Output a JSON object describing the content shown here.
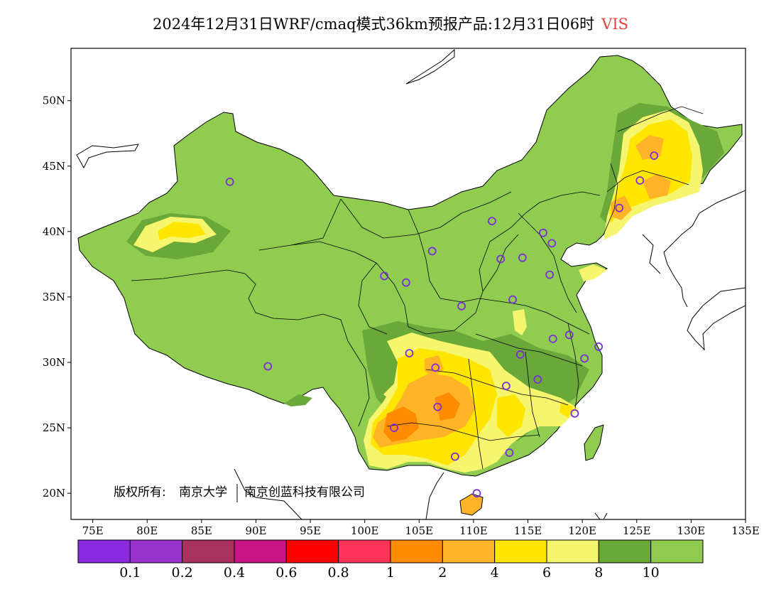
{
  "title": {
    "main": "2024年12月31日WRF/cmaq模式36km预报产品:12月31日06时",
    "variable": "VIS"
  },
  "copyright": {
    "prefix": "版权所有:",
    "owner1": "南京大学",
    "owner2": "南京创蓝科技有限公司"
  },
  "axes": {
    "lon_ticks": [
      "75E",
      "80E",
      "85E",
      "90E",
      "95E",
      "100E",
      "105E",
      "110E",
      "115E",
      "120E",
      "125E",
      "130E",
      "135E"
    ],
    "lat_ticks": [
      "50N",
      "45N",
      "40N",
      "35N",
      "30N",
      "25N",
      "20N"
    ]
  },
  "legend": {
    "colors": [
      "#8a2be2",
      "#9932cc",
      "#a8325e",
      "#c71585",
      "#ff0000",
      "#ff3358",
      "#ff8c00",
      "#ffb428",
      "#ffe600",
      "#f5f56e",
      "#6aa83a",
      "#8fcc50"
    ],
    "labels": [
      "0.1",
      "0.2",
      "0.4",
      "0.6",
      "0.8",
      "1",
      "2",
      "4",
      "6",
      "8",
      "10"
    ]
  },
  "palette": {
    "land_base": "#8fcc50",
    "land_dark": "#6aa83a",
    "light_yellow": "#f5f56e",
    "yellow": "#ffe600",
    "orange_light": "#ffb428",
    "orange": "#ff8c00",
    "station_marker": "#7b2fd6"
  },
  "stations": [
    {
      "lon": 87.6,
      "lat": 43.8
    },
    {
      "lon": 91.1,
      "lat": 29.7
    },
    {
      "lon": 101.8,
      "lat": 36.6
    },
    {
      "lon": 103.8,
      "lat": 36.1
    },
    {
      "lon": 106.2,
      "lat": 38.5
    },
    {
      "lon": 111.7,
      "lat": 40.8
    },
    {
      "lon": 112.5,
      "lat": 37.9
    },
    {
      "lon": 114.5,
      "lat": 38.0
    },
    {
      "lon": 116.4,
      "lat": 39.9
    },
    {
      "lon": 117.2,
      "lat": 39.1
    },
    {
      "lon": 117.0,
      "lat": 36.7
    },
    {
      "lon": 113.6,
      "lat": 34.8
    },
    {
      "lon": 108.9,
      "lat": 34.3
    },
    {
      "lon": 104.1,
      "lat": 30.7
    },
    {
      "lon": 106.5,
      "lat": 29.6
    },
    {
      "lon": 114.3,
      "lat": 30.6
    },
    {
      "lon": 117.3,
      "lat": 31.8
    },
    {
      "lon": 118.8,
      "lat": 32.1
    },
    {
      "lon": 121.5,
      "lat": 31.2
    },
    {
      "lon": 120.2,
      "lat": 30.3
    },
    {
      "lon": 113.0,
      "lat": 28.2
    },
    {
      "lon": 115.9,
      "lat": 28.7
    },
    {
      "lon": 119.3,
      "lat": 26.1
    },
    {
      "lon": 106.7,
      "lat": 26.6
    },
    {
      "lon": 102.7,
      "lat": 25.0
    },
    {
      "lon": 108.3,
      "lat": 22.8
    },
    {
      "lon": 113.3,
      "lat": 23.1
    },
    {
      "lon": 110.3,
      "lat": 20.0
    },
    {
      "lon": 123.4,
      "lat": 41.8
    },
    {
      "lon": 125.3,
      "lat": 43.9
    },
    {
      "lon": 126.6,
      "lat": 45.8
    }
  ]
}
